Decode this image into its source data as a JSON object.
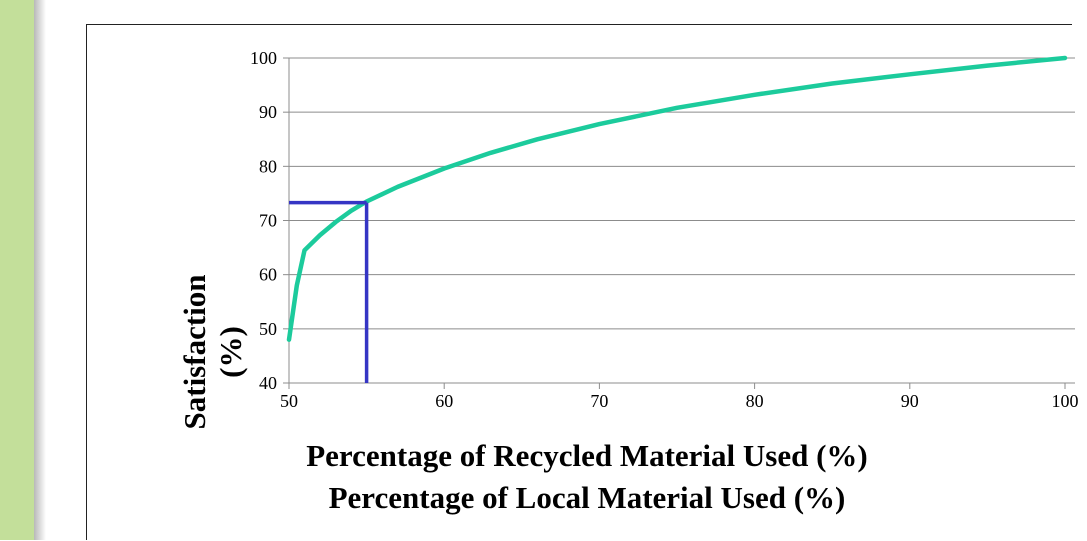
{
  "slide": {
    "accent_color": "#c3df9a"
  },
  "chart_data": {
    "type": "line",
    "title": "",
    "xlabel": [
      "Percentage of Recycled Material Used (%)",
      "Percentage of Local Material Used (%)"
    ],
    "ylabel": [
      "Satisfaction",
      "(%)"
    ],
    "xlim": [
      50,
      100
    ],
    "ylim": [
      40,
      100
    ],
    "x_ticks": [
      50,
      60,
      70,
      80,
      90,
      100
    ],
    "y_ticks": [
      40,
      50,
      60,
      70,
      80,
      90,
      100
    ],
    "grid": "horizontal",
    "series": [
      {
        "color": "#1ccb9c",
        "x": [
          50,
          50.5,
          51,
          52,
          53,
          54,
          55,
          57,
          60,
          63,
          66,
          70,
          75,
          80,
          85,
          90,
          95,
          100
        ],
        "y": [
          48,
          58,
          64.5,
          67.3,
          69.7,
          71.8,
          73.5,
          76.2,
          79.6,
          82.5,
          85,
          87.8,
          90.8,
          93.2,
          95.3,
          97,
          98.6,
          100
        ]
      }
    ],
    "annotation": {
      "color": "#3535c4",
      "x": 55,
      "y": 73.3
    }
  }
}
